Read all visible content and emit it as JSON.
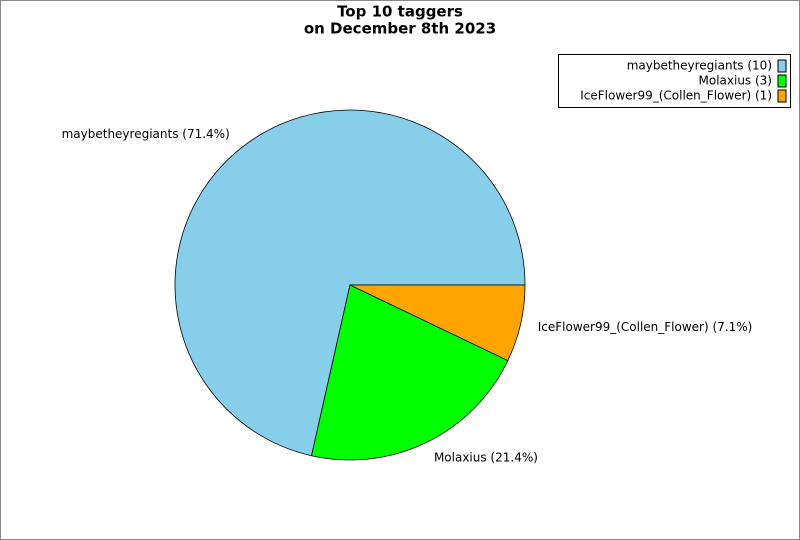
{
  "chart_data": {
    "type": "pie",
    "title": "Top 10 taggers",
    "subtitle": "on December 8th 2023",
    "categories": [
      "maybetheyregiants",
      "Molaxius",
      "IceFlower99_(Collen_Flower)"
    ],
    "values": [
      71.4,
      21.4,
      7.1
    ],
    "value_labels": [
      "maybetheyregiants (71.4%)",
      "Molaxius (21.4%)",
      "IceFlower99_(Collen_Flower) (7.1%)"
    ],
    "legend_labels": [
      "maybetheyregiants (10)",
      "Molaxius (3)",
      "IceFlower99_(Collen_Flower) (1)"
    ],
    "colors": [
      "#87ceeb",
      "#00ff00",
      "#ffa500"
    ],
    "legend": "upper right"
  }
}
